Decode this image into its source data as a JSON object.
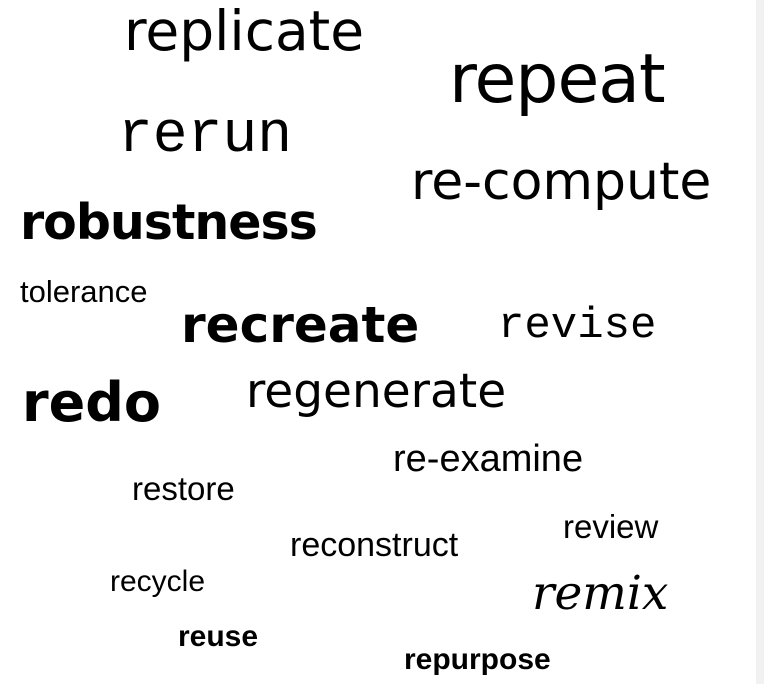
{
  "words": {
    "replicate": "replicate",
    "repeat": "repeat",
    "rerun": "rerun",
    "recompute": "re-compute",
    "robustness": "robustness",
    "tolerance": "tolerance",
    "recreate": "recreate",
    "revise": "revise",
    "redo": "redo",
    "regenerate": "regenerate",
    "reexamine": "re-examine",
    "restore": "restore",
    "review": "review",
    "reconstruct": "reconstruct",
    "recycle": "recycle",
    "remix": "remix",
    "reuse": "reuse",
    "repurpose": "repurpose"
  },
  "colors": {
    "text": "#000000",
    "background": "#ffffff"
  }
}
